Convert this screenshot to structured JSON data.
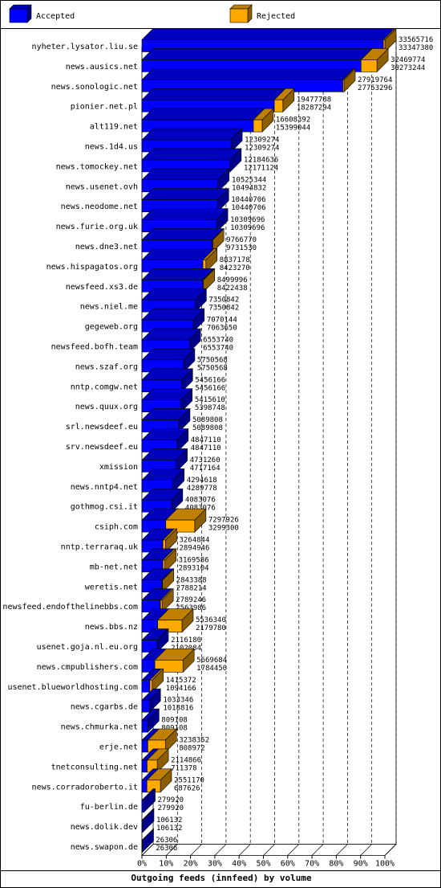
{
  "chart_data": {
    "type": "bar",
    "title": "Outgoing feeds (innfeed) by volume",
    "legend": [
      {
        "name": "Accepted",
        "color": "#0000FF"
      },
      {
        "name": "Rejected",
        "color": "#FFAA00"
      }
    ],
    "x_ticks": [
      "0%",
      "10%",
      "20%",
      "30%",
      "40%",
      "50%",
      "60%",
      "70%",
      "80%",
      "90%",
      "100%"
    ],
    "xlim": [
      0,
      100
    ],
    "categories": [
      "nyheter.lysator.liu.se",
      "news.ausics.net",
      "news.sonologic.net",
      "pionier.net.pl",
      "alt119.net",
      "news.1d4.us",
      "news.tomockey.net",
      "news.usenet.ovh",
      "news.neodome.net",
      "news.furie.org.uk",
      "news.dne3.net",
      "news.hispagatos.org",
      "newsfeed.xs3.de",
      "news.niel.me",
      "gegeweb.org",
      "newsfeed.bofh.team",
      "news.szaf.org",
      "nntp.comgw.net",
      "news.quux.org",
      "srl.newsdeef.eu",
      "srv.newsdeef.eu",
      "xmission",
      "news.nntp4.net",
      "gothmog.csi.it",
      "csiph.com",
      "nntp.terraraq.uk",
      "mb-net.net",
      "weretis.net",
      "newsfeed.endofthelinebbs.com",
      "news.bbs.nz",
      "usenet.goja.nl.eu.org",
      "news.cmpublishers.com",
      "usenet.blueworldhosting.com",
      "news.cgarbs.de",
      "news.chmurka.net",
      "erje.net",
      "tnetconsulting.net",
      "news.corradoroberto.it",
      "fu-berlin.de",
      "news.dolik.dev",
      "news.swapon.de"
    ],
    "series": [
      {
        "name": "Accepted",
        "values": [
          33565716,
          32469774,
          27919764,
          19477788,
          16608392,
          12309274,
          12184636,
          10525344,
          10440706,
          10309696,
          9766770,
          8837178,
          8499996,
          7350842,
          7070144,
          6553740,
          5750568,
          5456166,
          5415610,
          5089808,
          4847110,
          4731260,
          4294618,
          4083076,
          7297926,
          3264844,
          3169586,
          2843388,
          2789246,
          5536340,
          2116180,
          5669684,
          1415372,
          1033346,
          809108,
          3238352,
          2114866,
          2551170,
          279920,
          106132,
          26306
        ]
      },
      {
        "name": "Rejected",
        "values": [
          33347380,
          30273244,
          27753296,
          18287294,
          15399044,
          12309274,
          12171124,
          10494832,
          10440706,
          10309696,
          9731530,
          8423270,
          8422438,
          7350842,
          7063650,
          6553740,
          5750568,
          5456166,
          5398748,
          5089808,
          4847110,
          4717164,
          4289778,
          4083076,
          3299300,
          2894946,
          2893104,
          2788214,
          2563986,
          2179780,
          2102084,
          1784450,
          1094166,
          1018816,
          809108,
          808972,
          711378,
          687626,
          279920,
          106132,
          26306
        ]
      }
    ]
  }
}
